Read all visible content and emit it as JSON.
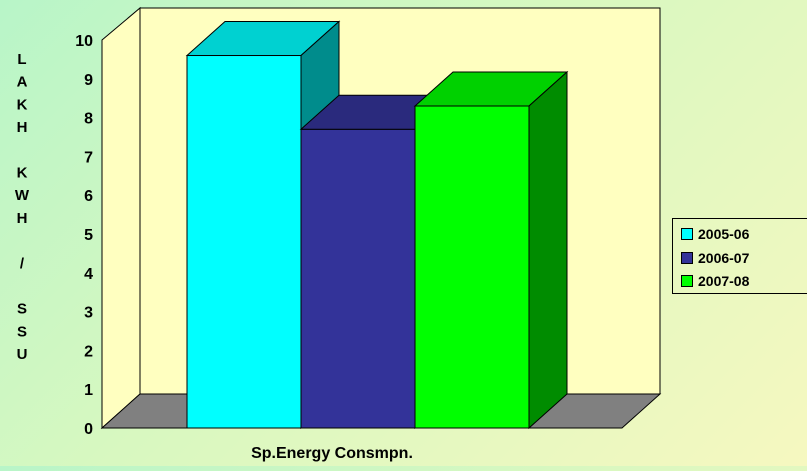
{
  "chart_data": {
    "type": "bar",
    "title": "",
    "xlabel": "Sp.Energy Consmpn.",
    "ylabel_letters": [
      "L",
      "A",
      "K",
      "H",
      "",
      "K",
      "W",
      "H",
      "",
      "/",
      "",
      "S",
      "S",
      "U"
    ],
    "categories": [
      "Sp.Energy Consmpn."
    ],
    "series": [
      {
        "name": "2005-06",
        "values": [
          9.6
        ],
        "color": "#00ffff"
      },
      {
        "name": "2006-07",
        "values": [
          7.7
        ],
        "color": "#333399"
      },
      {
        "name": "2007-08",
        "values": [
          8.3
        ],
        "color": "#00ff00"
      }
    ],
    "ylim": [
      0,
      10
    ],
    "y_ticks": [
      "0",
      "1",
      "2",
      "3",
      "4",
      "5",
      "6",
      "7",
      "8",
      "9",
      "10"
    ],
    "three_d": true,
    "legend_position": "right",
    "grid": false,
    "floor_color": "#808080",
    "wall_color": "#ffffc0"
  }
}
